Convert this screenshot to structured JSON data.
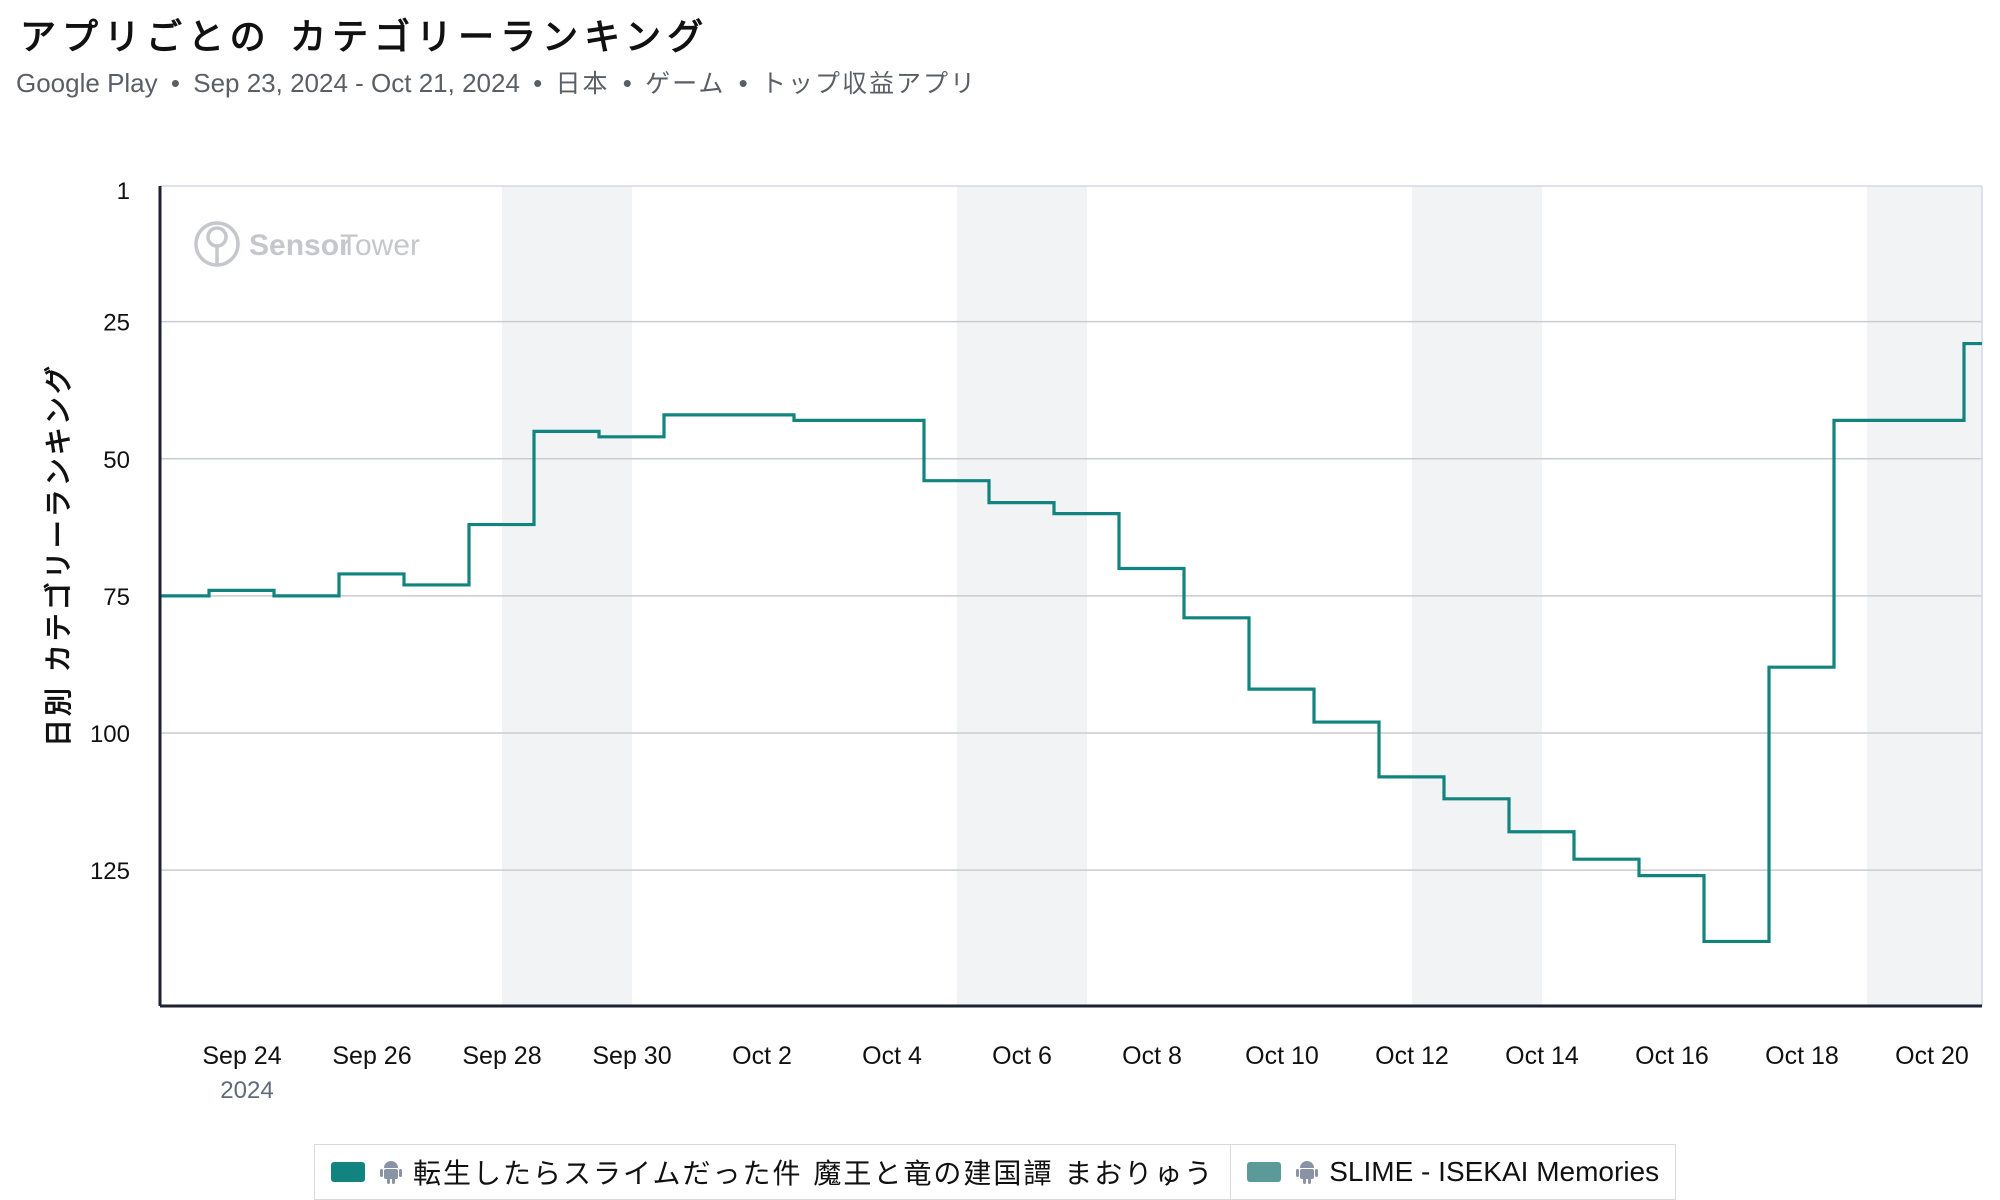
{
  "header": {
    "title": "アプリごとの カテゴリーランキング",
    "subtitle_parts": [
      "Google Play",
      "Sep 23, 2024 - Oct 21, 2024",
      "日本",
      "ゲーム",
      "トップ収益アプリ"
    ],
    "separator": "•"
  },
  "watermark": {
    "brand_a": "Sensor",
    "brand_b": "Tower",
    "icon": "sensor-tower-logo-icon"
  },
  "colors": {
    "series_1": "#12847f",
    "series_2": "#5c9a9a",
    "weekend_band": "#f2f3f5",
    "grid": "#c9ccd1",
    "axis": "#1c2230",
    "android_icon": "#8a93a6"
  },
  "legend": {
    "items": [
      {
        "label": "転生したらスライムだった件 魔王と竜の建国譚 まおりゅう",
        "platform_icon": "android-icon"
      },
      {
        "label": "SLIME - ISEKAI Memories",
        "platform_icon": "android-icon"
      }
    ]
  },
  "chart_data": {
    "type": "line",
    "step": true,
    "ylabel": "日別 カテゴリーランキング",
    "xlabel": "",
    "y_inverted": true,
    "ylim": [
      1,
      150
    ],
    "yticks": [
      1,
      25,
      50,
      75,
      100,
      125
    ],
    "x_start_date": "2024-09-23",
    "x_end_date": "2024-10-21",
    "xticks": [
      {
        "label": "Sep 24",
        "sublabel": "2024",
        "date": "2024-09-24"
      },
      {
        "label": "Sep 26",
        "date": "2024-09-26"
      },
      {
        "label": "Sep 28",
        "date": "2024-09-28"
      },
      {
        "label": "Sep 30",
        "date": "2024-09-30"
      },
      {
        "label": "Oct 2",
        "date": "2024-10-02"
      },
      {
        "label": "Oct 4",
        "date": "2024-10-04"
      },
      {
        "label": "Oct 6",
        "date": "2024-10-06"
      },
      {
        "label": "Oct 8",
        "date": "2024-10-08"
      },
      {
        "label": "Oct 10",
        "date": "2024-10-10"
      },
      {
        "label": "Oct 12",
        "date": "2024-10-12"
      },
      {
        "label": "Oct 14",
        "date": "2024-10-14"
      },
      {
        "label": "Oct 16",
        "date": "2024-10-16"
      },
      {
        "label": "Oct 18",
        "date": "2024-10-18"
      },
      {
        "label": "Oct 20",
        "date": "2024-10-20"
      }
    ],
    "weekend_bands": [
      [
        "2024-09-28",
        "2024-09-30"
      ],
      [
        "2024-10-05",
        "2024-10-07"
      ],
      [
        "2024-10-12",
        "2024-10-14"
      ],
      [
        "2024-10-19",
        "2024-10-21"
      ]
    ],
    "series": [
      {
        "name": "転生したらスライムだった件 魔王と竜の建国譚 まおりゅう",
        "dates": [
          "2024-09-23",
          "2024-09-24",
          "2024-09-25",
          "2024-09-26",
          "2024-09-27",
          "2024-09-28",
          "2024-09-29",
          "2024-09-30",
          "2024-10-01",
          "2024-10-02",
          "2024-10-03",
          "2024-10-04",
          "2024-10-05",
          "2024-10-06",
          "2024-10-07",
          "2024-10-08",
          "2024-10-09",
          "2024-10-10",
          "2024-10-11",
          "2024-10-12",
          "2024-10-13",
          "2024-10-14",
          "2024-10-15",
          "2024-10-16",
          "2024-10-17",
          "2024-10-18",
          "2024-10-19",
          "2024-10-20",
          "2024-10-21"
        ],
        "values": [
          75,
          74,
          75,
          71,
          73,
          62,
          45,
          46,
          42,
          42,
          43,
          43,
          54,
          58,
          60,
          70,
          79,
          92,
          98,
          108,
          112,
          118,
          123,
          126,
          138,
          88,
          43,
          43,
          29
        ]
      },
      {
        "name": "SLIME - ISEKAI Memories",
        "dates": [],
        "values": []
      }
    ]
  }
}
